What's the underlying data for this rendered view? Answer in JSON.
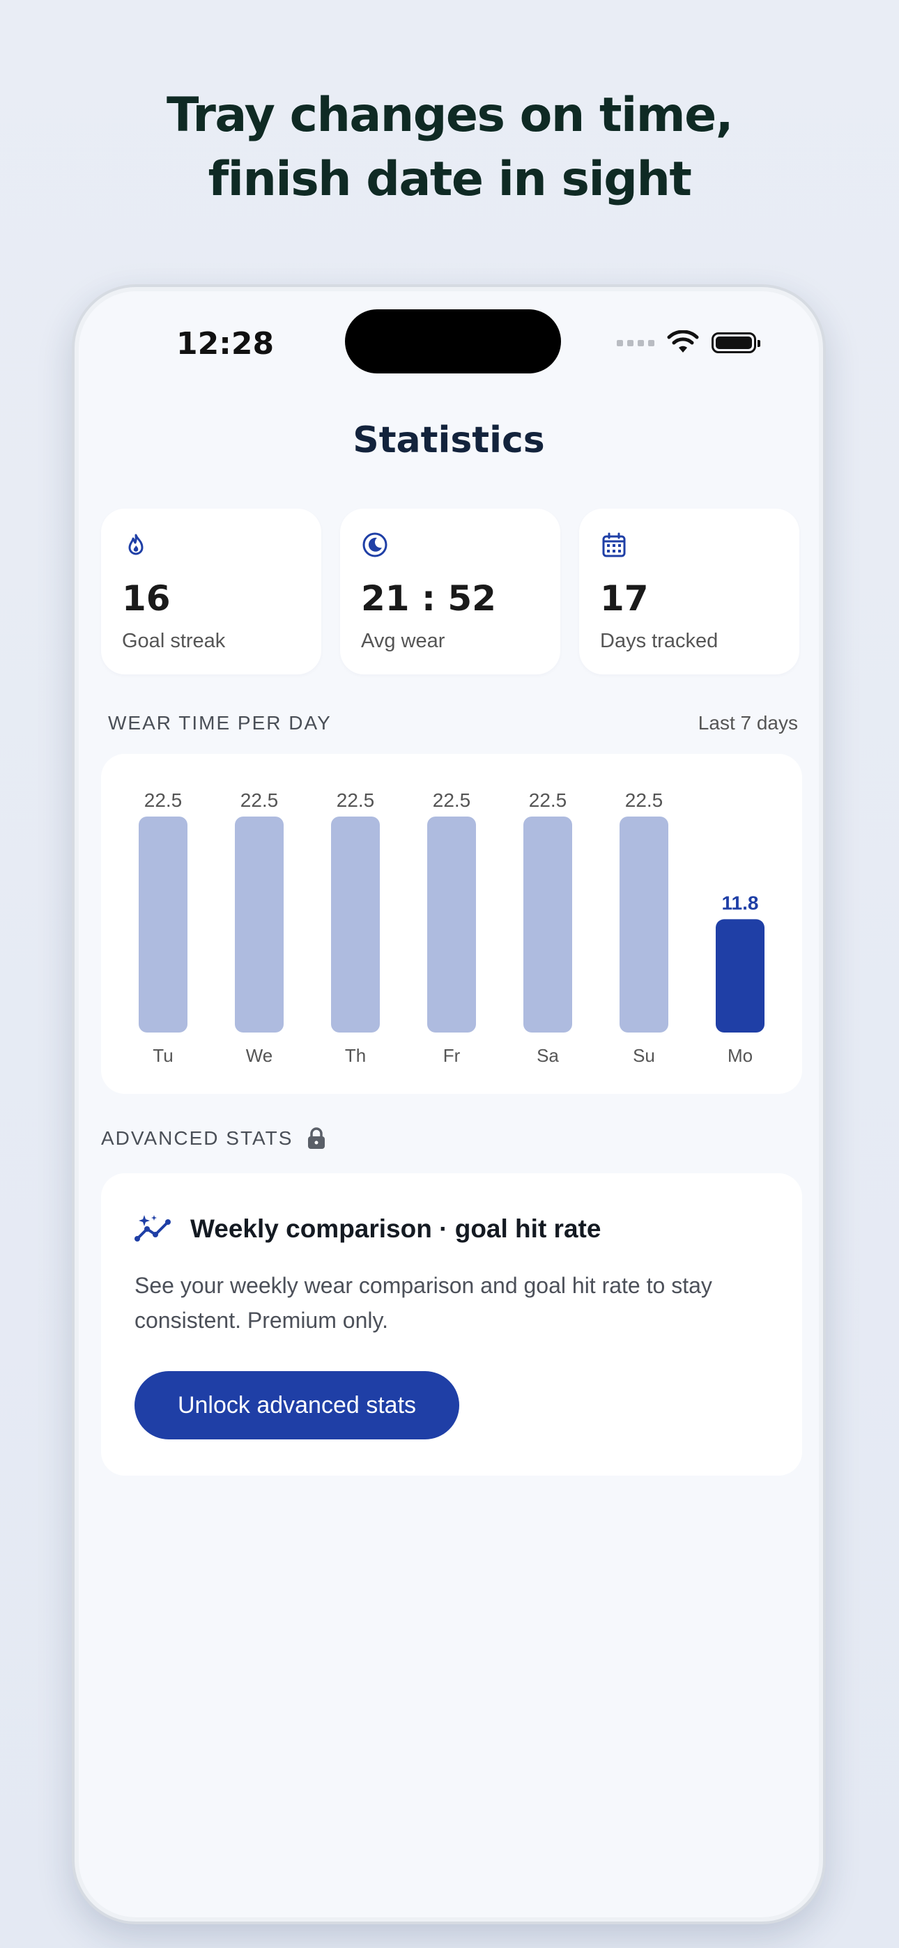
{
  "headline": {
    "line1": "Tray changes on time,",
    "line2": "finish date in sight"
  },
  "status_bar": {
    "time": "12:28"
  },
  "screen": {
    "title": "Statistics"
  },
  "stats": [
    {
      "icon": "flame-icon",
      "value": "16",
      "label": "Goal streak"
    },
    {
      "icon": "moon-icon",
      "value": "21 : 52",
      "label": "Avg wear"
    },
    {
      "icon": "calendar-icon",
      "value": "17",
      "label": "Days tracked"
    }
  ],
  "wear_section": {
    "label": "WEAR TIME PER DAY",
    "range": "Last 7 days"
  },
  "chart_data": {
    "type": "bar",
    "categories": [
      "Tu",
      "We",
      "Th",
      "Fr",
      "Sa",
      "Su",
      "Mo"
    ],
    "values": [
      22.5,
      22.5,
      22.5,
      22.5,
      22.5,
      22.5,
      11.8
    ],
    "highlight_index": 6,
    "ylim": [
      0,
      22.5
    ],
    "colors": {
      "default": "#aebbdf",
      "highlight": "#1f3fa6",
      "label": "#555555",
      "highlight_label": "#1f3fa6"
    }
  },
  "advanced": {
    "label": "ADVANCED STATS",
    "title": "Weekly comparison · goal hit rate",
    "description": "See your weekly wear comparison and goal hit rate to stay consistent. Premium only.",
    "button": "Unlock advanced stats"
  },
  "colors": {
    "accent": "#1f3fa6"
  }
}
